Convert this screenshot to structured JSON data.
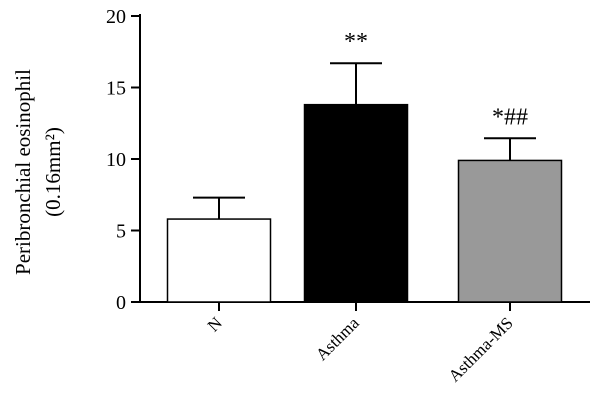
{
  "chart_data": {
    "type": "bar",
    "title": "",
    "xlabel": "",
    "ylabel_line1": "Peribronchial eosinophil",
    "ylabel_line2": "(0.16mm²)",
    "ylim": [
      0,
      20
    ],
    "yticks": [
      "0",
      "5",
      "10",
      "15",
      "20"
    ],
    "categories": [
      "N",
      "Asthma",
      "Asthma-MS"
    ],
    "values": [
      5.8,
      13.8,
      9.9
    ],
    "errors": [
      1.5,
      2.9,
      1.55
    ],
    "annotations": [
      "",
      "**",
      "*##"
    ],
    "bar_colors": [
      "#ffffff",
      "#000000",
      "#999999"
    ],
    "grid": false
  }
}
